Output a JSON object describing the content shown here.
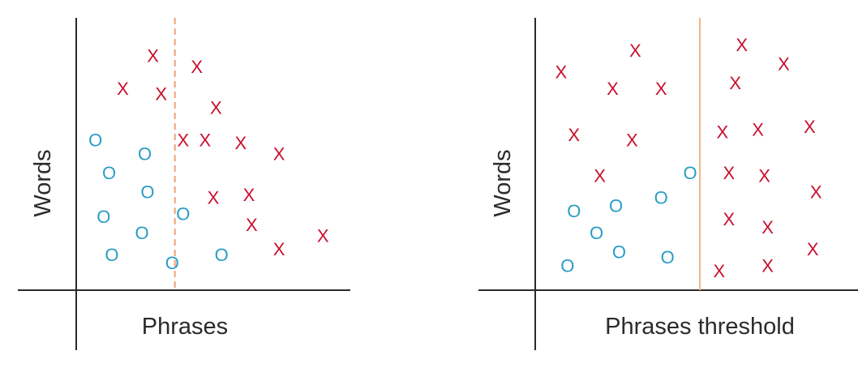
{
  "chart_data": [
    {
      "type": "scatter",
      "xlabel": "Phrases",
      "ylabel": "Words",
      "threshold": {
        "x": 0.36,
        "style": "dashed",
        "color": "#f0a278"
      },
      "series": [
        {
          "marker": "x",
          "color": "#c8102e",
          "points": [
            [
              0.28,
              0.86
            ],
            [
              0.17,
              0.74
            ],
            [
              0.31,
              0.72
            ],
            [
              0.44,
              0.82
            ],
            [
              0.51,
              0.67
            ],
            [
              0.39,
              0.55
            ],
            [
              0.47,
              0.55
            ],
            [
              0.6,
              0.54
            ],
            [
              0.74,
              0.5
            ],
            [
              0.5,
              0.34
            ],
            [
              0.63,
              0.35
            ],
            [
              0.64,
              0.24
            ],
            [
              0.74,
              0.15
            ],
            [
              0.9,
              0.2
            ]
          ]
        },
        {
          "marker": "o",
          "color": "#2a9dc5",
          "points": [
            [
              0.07,
              0.55
            ],
            [
              0.25,
              0.5
            ],
            [
              0.12,
              0.43
            ],
            [
              0.26,
              0.36
            ],
            [
              0.1,
              0.27
            ],
            [
              0.39,
              0.28
            ],
            [
              0.24,
              0.21
            ],
            [
              0.13,
              0.13
            ],
            [
              0.35,
              0.1
            ],
            [
              0.53,
              0.13
            ]
          ]
        }
      ]
    },
    {
      "type": "scatter",
      "xlabel": "Phrases threshold",
      "ylabel": "Words",
      "threshold": {
        "x": 0.51,
        "style": "solid",
        "color": "#f0b785"
      },
      "series": [
        {
          "marker": "x",
          "color": "#c8102e",
          "points": [
            [
              0.08,
              0.8
            ],
            [
              0.31,
              0.88
            ],
            [
              0.24,
              0.74
            ],
            [
              0.39,
              0.74
            ],
            [
              0.64,
              0.9
            ],
            [
              0.77,
              0.83
            ],
            [
              0.62,
              0.76
            ],
            [
              0.12,
              0.57
            ],
            [
              0.3,
              0.55
            ],
            [
              0.58,
              0.58
            ],
            [
              0.69,
              0.59
            ],
            [
              0.85,
              0.6
            ],
            [
              0.2,
              0.42
            ],
            [
              0.6,
              0.43
            ],
            [
              0.71,
              0.42
            ],
            [
              0.87,
              0.36
            ],
            [
              0.6,
              0.26
            ],
            [
              0.72,
              0.23
            ],
            [
              0.86,
              0.15
            ],
            [
              0.57,
              0.07
            ],
            [
              0.72,
              0.09
            ]
          ]
        },
        {
          "marker": "o",
          "color": "#2a9dc5",
          "points": [
            [
              0.48,
              0.43
            ],
            [
              0.39,
              0.34
            ],
            [
              0.25,
              0.31
            ],
            [
              0.12,
              0.29
            ],
            [
              0.19,
              0.21
            ],
            [
              0.26,
              0.14
            ],
            [
              0.41,
              0.12
            ],
            [
              0.1,
              0.09
            ]
          ]
        }
      ]
    }
  ]
}
